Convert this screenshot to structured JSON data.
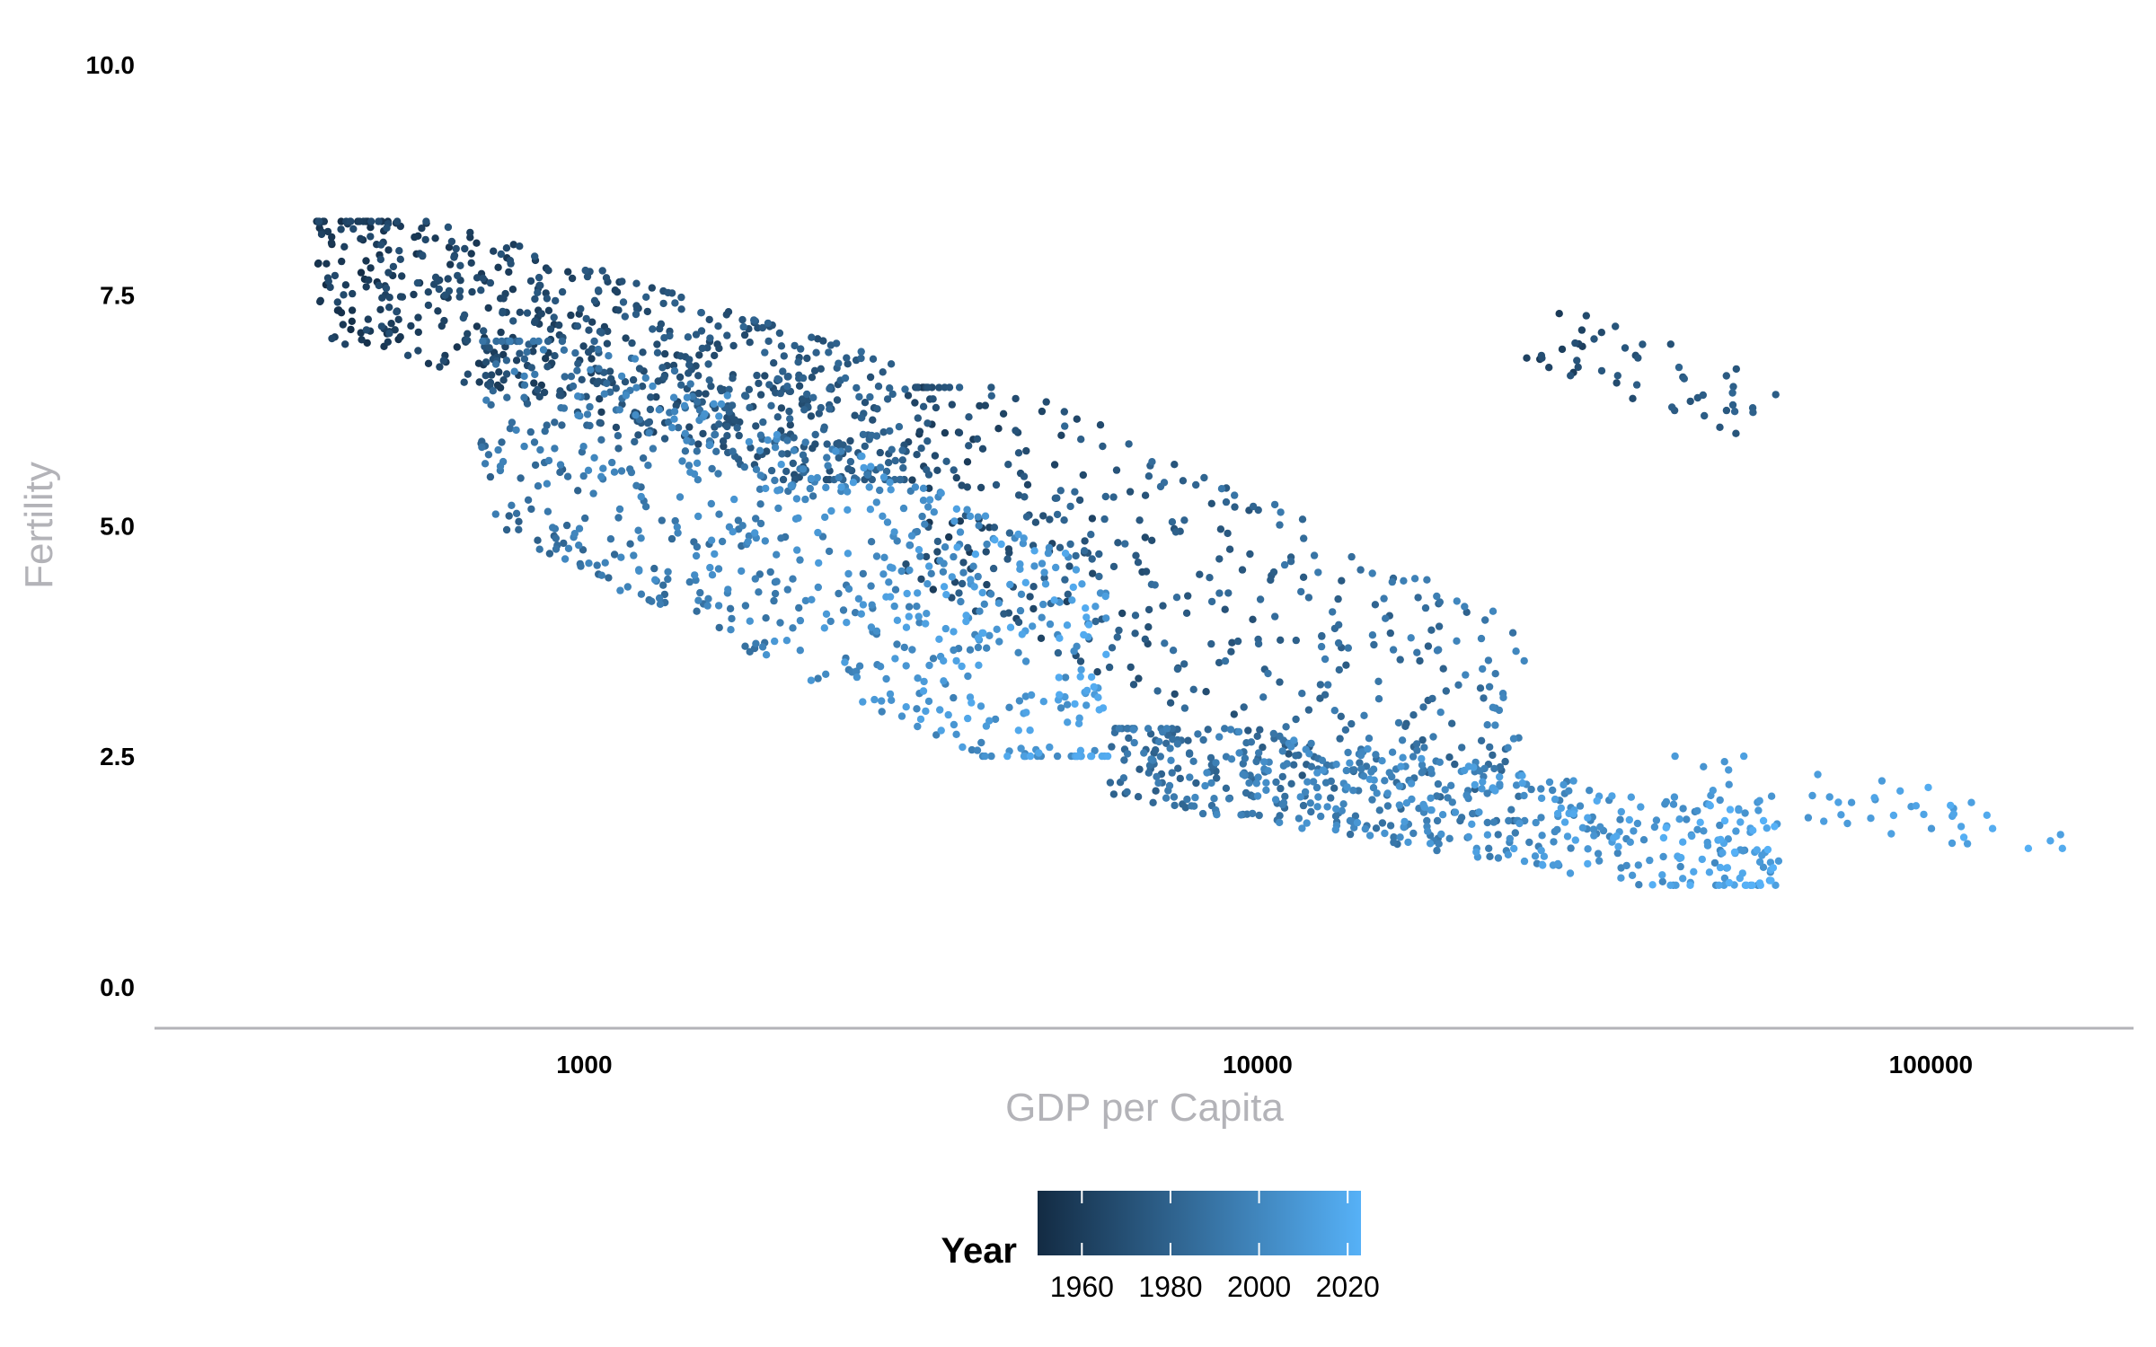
{
  "chart_data": {
    "type": "scatter",
    "title": "",
    "xlabel": "GDP per Capita",
    "ylabel": "Fertility",
    "x_scale": "log10",
    "xlim": [
      230,
      200000
    ],
    "ylim": [
      -0.45,
      10.0
    ],
    "x_ticks": [
      1000,
      10000,
      100000
    ],
    "x_tick_labels": [
      "1000",
      "10000",
      "100000"
    ],
    "y_ticks": [
      0,
      2.5,
      5,
      7.5,
      10
    ],
    "y_tick_labels": [
      "0.0",
      "2.5",
      "5.0",
      "7.5",
      "10.0"
    ],
    "grid": false,
    "legend": {
      "title": "Year",
      "position": "bottom",
      "type": "colorbar",
      "breaks": [
        1960,
        1980,
        2000,
        2020
      ],
      "labels": [
        "1960",
        "1980",
        "2000",
        "2020"
      ],
      "range": [
        1950,
        2023
      ],
      "color_low": "#132B43",
      "color_high": "#56B1F7"
    },
    "colors": {
      "axis_line": "#b3b3b8",
      "axis_title": "#b3b3b8"
    },
    "point_count_approx": 2500,
    "series_clusters": [
      {
        "gdp_range": [
          400,
          3000
        ],
        "fertility_range": [
          5.5,
          8.3
        ],
        "year_range": [
          1950,
          1985
        ]
      },
      {
        "gdp_range": [
          700,
          6000
        ],
        "fertility_range": [
          2.5,
          7.0
        ],
        "year_range": [
          1975,
          2020
        ]
      },
      {
        "gdp_range": [
          3000,
          25000
        ],
        "fertility_range": [
          1.8,
          6.5
        ],
        "year_range": [
          1955,
          2000
        ]
      },
      {
        "gdp_range": [
          6000,
          60000
        ],
        "fertility_range": [
          1.1,
          2.8
        ],
        "year_range": [
          1975,
          2023
        ]
      },
      {
        "gdp_range": [
          25000,
          60000
        ],
        "fertility_range": [
          6.0,
          7.3
        ],
        "year_range": [
          1955,
          1985
        ]
      },
      {
        "gdp_range": [
          40000,
          160000
        ],
        "fertility_range": [
          1.5,
          2.5
        ],
        "year_range": [
          2000,
          2023
        ]
      }
    ]
  }
}
